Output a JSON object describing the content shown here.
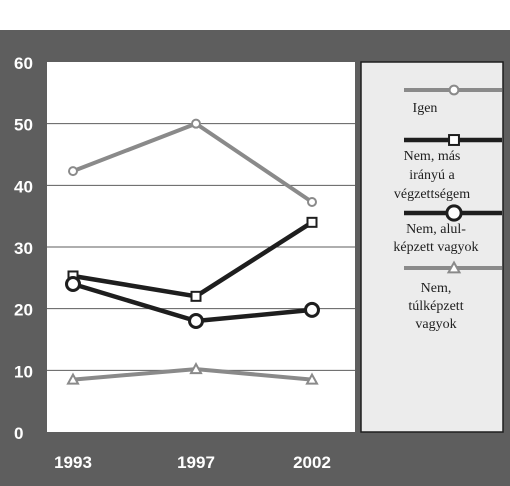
{
  "colors": {
    "frame_bg": "#5e5e5e",
    "frame_top_band": "#ffffff",
    "plot_bg": "#ffffff",
    "grid": "#5e5e5e",
    "legend_bg": "#ececec",
    "legend_border": "#1e1e1e",
    "axis_text": "#ffffff",
    "legend_text": "#1e1e1e"
  },
  "chart_data": {
    "type": "line",
    "title": "",
    "xlabel": "",
    "ylabel": "",
    "x": [
      "1993",
      "1997",
      "2002"
    ],
    "ylim": [
      0,
      60
    ],
    "yticks": [
      "0",
      "10",
      "20",
      "30",
      "40",
      "50",
      "60"
    ],
    "grid": true,
    "legend_position": "right",
    "series": [
      {
        "name": "Igen",
        "name_lines": [
          "Igen"
        ],
        "values": [
          42.3,
          50.0,
          37.3
        ],
        "color": "#8a8a8a",
        "marker": "circle-small",
        "stroke": "light"
      },
      {
        "name": "Nem, más irányú a végzettségem",
        "name_lines": [
          "Nem, más",
          "irányú a",
          "végzettségem"
        ],
        "values": [
          25.3,
          22.0,
          34.0
        ],
        "color": "#1e1e1e",
        "marker": "square",
        "stroke": "heavy"
      },
      {
        "name": "Nem, alul-képzett vagyok",
        "name_lines": [
          "Nem, alul-",
          "képzett vagyok"
        ],
        "values": [
          24.0,
          18.0,
          19.8
        ],
        "color": "#1e1e1e",
        "marker": "circle-large",
        "stroke": "heavy"
      },
      {
        "name": "Nem, túlképzett vagyok",
        "name_lines": [
          "Nem,",
          "túlképzett",
          "vagyok"
        ],
        "values": [
          8.5,
          10.2,
          8.5
        ],
        "color": "#8a8a8a",
        "marker": "triangle",
        "stroke": "light"
      }
    ]
  }
}
